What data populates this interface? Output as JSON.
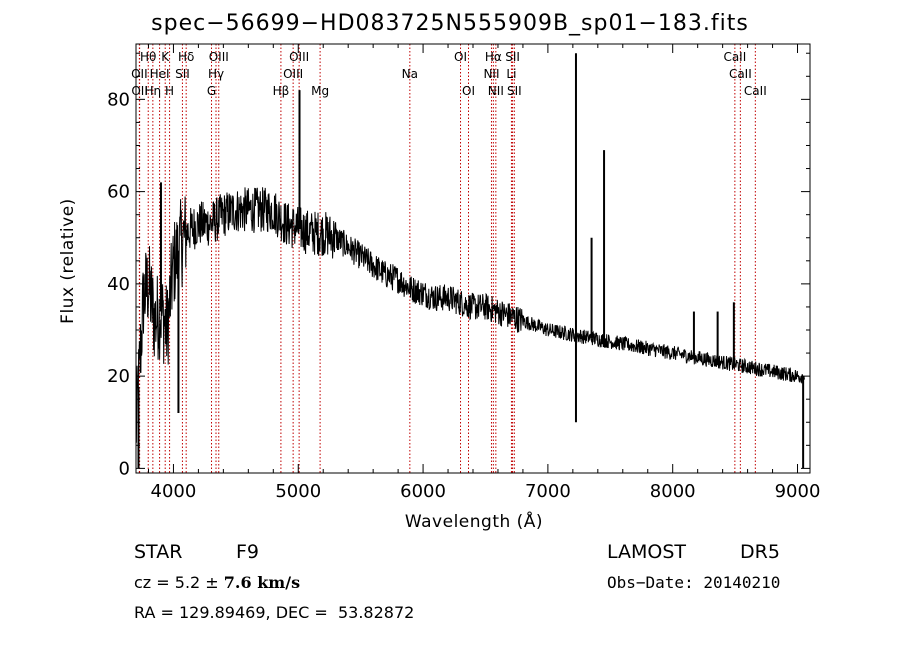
{
  "chart_data": {
    "type": "line",
    "title": "spec−56699−HD083725N555909B_sp01−183.fits",
    "xlabel": "Wavelength (Å)",
    "ylabel": "Flux (relative)",
    "xlim": [
      3700,
      9100
    ],
    "ylim": [
      -1,
      92
    ],
    "x_ticks": [
      4000,
      5000,
      6000,
      7000,
      8000,
      9000
    ],
    "y_ticks": [
      0,
      20,
      40,
      60,
      80
    ],
    "continuum": {
      "x": [
        3700,
        3760,
        3800,
        3850,
        3900,
        3950,
        4000,
        4050,
        4100,
        4200,
        4300,
        4400,
        4500,
        4600,
        4700,
        4800,
        4900,
        5000,
        5100,
        5200,
        5300,
        5400,
        5500,
        5600,
        5700,
        5800,
        5900,
        6000,
        6100,
        6200,
        6300,
        6400,
        6500,
        6600,
        6700,
        6800,
        6900,
        7000,
        7100,
        7200,
        7300,
        7400,
        7500,
        7600,
        7700,
        7800,
        7900,
        8000,
        8100,
        8200,
        8300,
        8400,
        8500,
        8600,
        8700,
        8800,
        8900,
        9000,
        9060
      ],
      "y": [
        8,
        37,
        40,
        32,
        34,
        30,
        44,
        48,
        51,
        53,
        53,
        55,
        56,
        56,
        56,
        56,
        53,
        52,
        51,
        51,
        50,
        48,
        46,
        44,
        42,
        41,
        39,
        38,
        37,
        37,
        36,
        35,
        35,
        34,
        33,
        32,
        31,
        30,
        29.5,
        29,
        28.5,
        28,
        27.5,
        27,
        26.5,
        26,
        25.5,
        25,
        24.5,
        24,
        23.5,
        23,
        22.5,
        22,
        21.5,
        21,
        20.5,
        20,
        20
      ]
    },
    "spikes": [
      {
        "x": 3720,
        "y": 0
      },
      {
        "x": 3900,
        "y": 62
      },
      {
        "x": 4040,
        "y": 12
      },
      {
        "x": 5010,
        "y": 82
      },
      {
        "x": 7225,
        "y": 90
      },
      {
        "x": 7225,
        "y": 10
      },
      {
        "x": 7350,
        "y": 50
      },
      {
        "x": 7450,
        "y": 69
      },
      {
        "x": 8170,
        "y": 34
      },
      {
        "x": 8360,
        "y": 34
      },
      {
        "x": 8490,
        "y": 36
      },
      {
        "x": 9045,
        "y": 0
      }
    ],
    "line_markers": [
      {
        "label": "Hθ",
        "x": 3798,
        "row": 0
      },
      {
        "label": "OII",
        "x": 3727,
        "row": 1
      },
      {
        "label": "OII",
        "x": 3729,
        "row": 2
      },
      {
        "label": "K",
        "x": 3934,
        "row": 0
      },
      {
        "label": "H",
        "x": 3969,
        "row": 2
      },
      {
        "label": "HeI",
        "x": 3889,
        "row": 1
      },
      {
        "label": "Hη",
        "x": 3835,
        "row": 2
      },
      {
        "label": "Hδ",
        "x": 4102,
        "row": 0
      },
      {
        "label": "SII",
        "x": 4072,
        "row": 1
      },
      {
        "label": "OIII",
        "x": 4363,
        "row": 0
      },
      {
        "label": "Hγ",
        "x": 4341,
        "row": 1
      },
      {
        "label": "G",
        "x": 4305,
        "row": 2
      },
      {
        "label": "OIII",
        "x": 5007,
        "row": 0
      },
      {
        "label": "OIII",
        "x": 4959,
        "row": 1
      },
      {
        "label": "Hβ",
        "x": 4861,
        "row": 2
      },
      {
        "label": "Mg",
        "x": 5175,
        "row": 2
      },
      {
        "label": "Na",
        "x": 5894,
        "row": 1
      },
      {
        "label": "OI",
        "x": 6300,
        "row": 0
      },
      {
        "label": "OI",
        "x": 6364,
        "row": 2
      },
      {
        "label": "Hα",
        "x": 6563,
        "row": 0
      },
      {
        "label": "NII",
        "x": 6548,
        "row": 1
      },
      {
        "label": "NII",
        "x": 6583,
        "row": 2
      },
      {
        "label": "SII",
        "x": 6717,
        "row": 0
      },
      {
        "label": "Li",
        "x": 6708,
        "row": 1
      },
      {
        "label": "SII",
        "x": 6731,
        "row": 2
      },
      {
        "label": "CaII",
        "x": 8498,
        "row": 0
      },
      {
        "label": "CaII",
        "x": 8542,
        "row": 1
      },
      {
        "label": "CaII",
        "x": 8662,
        "row": 2
      }
    ],
    "grid": false,
    "colors": {
      "spectrum": "#000000",
      "line_markers": "#c00000",
      "axes": "#000000"
    }
  },
  "info": {
    "object_type": "STAR",
    "subclass": "F9",
    "survey": "LAMOST",
    "release": "DR5",
    "cz_text": "cz = 5.2 ± ",
    "cz_err": "7.6 km/s",
    "obs_date": "Obs−Date: 20140210",
    "coords": "RA = 129.89469, DEC =  53.82872"
  }
}
